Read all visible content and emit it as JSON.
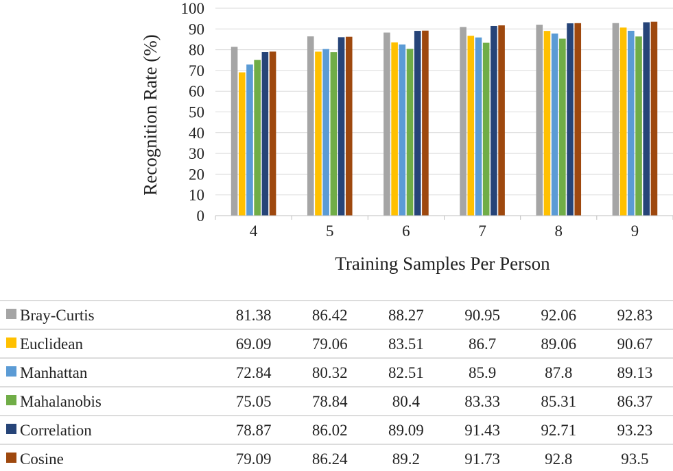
{
  "chart_data": {
    "type": "bar",
    "title": "",
    "xlabel": "Training Samples Per Person",
    "ylabel": "Recognition Rate (%)",
    "ylim": [
      0,
      100
    ],
    "yticks": [
      0,
      10,
      20,
      30,
      40,
      50,
      60,
      70,
      80,
      90,
      100
    ],
    "grid": true,
    "legend": "data-table-below",
    "categories": [
      "4",
      "5",
      "6",
      "7",
      "8",
      "9"
    ],
    "series": [
      {
        "name": "Bray-Curtis",
        "color": "#a5a5a5",
        "values": [
          81.38,
          86.42,
          88.27,
          90.95,
          92.06,
          92.83
        ]
      },
      {
        "name": "Euclidean",
        "color": "#ffc000",
        "values": [
          69.09,
          79.06,
          83.51,
          86.7,
          89.06,
          90.67
        ]
      },
      {
        "name": "Manhattan",
        "color": "#5b9bd5",
        "values": [
          72.84,
          80.32,
          82.51,
          85.9,
          87.8,
          89.13
        ]
      },
      {
        "name": "Mahalanobis",
        "color": "#70ad47",
        "values": [
          75.05,
          78.84,
          80.4,
          83.33,
          85.31,
          86.37
        ]
      },
      {
        "name": "Correlation",
        "color": "#264478",
        "values": [
          78.87,
          86.02,
          89.09,
          91.43,
          92.71,
          93.23
        ]
      },
      {
        "name": "Cosine",
        "color": "#9e480e",
        "values": [
          79.09,
          86.24,
          89.2,
          91.73,
          92.8,
          93.5
        ]
      }
    ],
    "table_values": [
      [
        "81.38",
        "86.42",
        "88.27",
        "90.95",
        "92.06",
        "92.83"
      ],
      [
        "69.09",
        "79.06",
        "83.51",
        "86.7",
        "89.06",
        "90.67"
      ],
      [
        "72.84",
        "80.32",
        "82.51",
        "85.9",
        "87.8",
        "89.13"
      ],
      [
        "75.05",
        "78.84",
        "80.4",
        "83.33",
        "85.31",
        "86.37"
      ],
      [
        "78.87",
        "86.02",
        "89.09",
        "91.43",
        "92.71",
        "93.23"
      ],
      [
        "79.09",
        "86.24",
        "89.2",
        "91.73",
        "92.8",
        "93.5"
      ]
    ]
  }
}
